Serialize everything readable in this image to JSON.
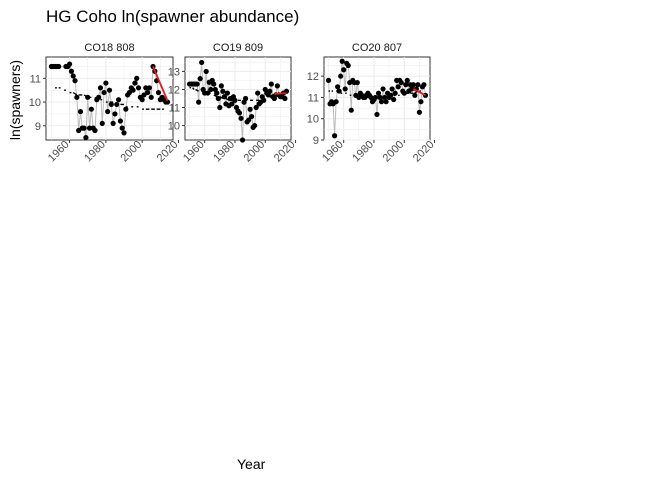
{
  "title": "HG Coho ln(spawner abundance)",
  "xlabel": "Year",
  "ylabel": "ln(spawners)",
  "colors": {
    "point": "#000000",
    "obs_line": "#bdbdbd",
    "fit_line": "#000000",
    "recent_line": "#e41a1c",
    "panel_bg": "#ffffff",
    "grid": "#ebebeb",
    "strip_bg": "#ffffff"
  },
  "chart_data": [
    {
      "type": "scatter",
      "panel": "CO18 808",
      "xlim": [
        1947,
        2017
      ],
      "ylim": [
        8.4,
        11.9
      ],
      "xticks": [
        1960,
        1980,
        2000,
        2020
      ],
      "yticks": [
        9,
        10,
        11
      ],
      "grid": true,
      "x": [
        1950,
        1951,
        1952,
        1953,
        1954,
        1958,
        1959,
        1960,
        1961,
        1962,
        1963,
        1964,
        1965,
        1966,
        1967,
        1968,
        1969,
        1970,
        1971,
        1972,
        1973,
        1974,
        1975,
        1976,
        1977,
        1978,
        1979,
        1980,
        1981,
        1982,
        1983,
        1984,
        1985,
        1986,
        1987,
        1988,
        1989,
        1990,
        1991,
        1992,
        1993,
        1994,
        1995,
        1996,
        1997,
        1998,
        1999,
        2000,
        2001,
        2002,
        2003,
        2004,
        2005,
        2006,
        2007,
        2008,
        2009,
        2010,
        2011,
        2012,
        2013,
        2014
      ],
      "y": [
        11.5,
        11.5,
        11.5,
        11.5,
        11.5,
        11.5,
        11.5,
        11.6,
        11.3,
        11.1,
        10.9,
        10.2,
        8.8,
        9.6,
        8.9,
        8.9,
        8.5,
        10.2,
        8.9,
        9.7,
        8.9,
        8.8,
        10.1,
        10.2,
        10.6,
        9.1,
        10.4,
        10.8,
        9.6,
        10.5,
        9.9,
        9.1,
        9.5,
        9.9,
        10.1,
        9.2,
        8.9,
        8.7,
        9.7,
        10.3,
        10.4,
        10.6,
        10.5,
        10.8,
        11.0,
        10.6,
        10.2,
        10.1,
        10.3,
        10.6,
        10.4,
        10.6,
        10.2,
        11.5,
        11.3,
        10.9,
        10.4,
        10.1,
        10.2,
        10.1,
        10.0,
        10.0
      ],
      "fit_x": [
        1952,
        1953,
        1954,
        1955,
        1957,
        1958,
        1960,
        1961,
        1962,
        1964,
        1965,
        1967,
        1968,
        1970,
        1971,
        1972,
        1974,
        1975,
        1977,
        1978,
        1980,
        1981,
        1982,
        1984,
        1985,
        1987,
        1988,
        1990,
        1991,
        1992,
        1994,
        1995,
        1997,
        1998,
        2000,
        2001,
        2002,
        2004,
        2005,
        2007,
        2008,
        2010,
        2011,
        2012
      ],
      "fit_y": [
        10.6,
        10.6,
        10.6,
        10.6,
        10.5,
        10.5,
        10.4,
        10.4,
        10.4,
        10.3,
        10.3,
        10.3,
        10.3,
        10.2,
        10.2,
        10.2,
        10.2,
        10.1,
        10.1,
        10.1,
        10.0,
        10.0,
        10.0,
        10.0,
        9.9,
        9.9,
        9.9,
        9.9,
        9.8,
        9.8,
        9.8,
        9.8,
        9.8,
        9.8,
        9.7,
        9.7,
        9.7,
        9.7,
        9.7,
        9.7,
        9.7,
        9.7,
        9.7,
        9.7
      ],
      "recent_x": [
        2006,
        2014
      ],
      "recent_y": [
        11.5,
        10.05
      ]
    },
    {
      "type": "scatter",
      "panel": "CO19 809",
      "xlim": [
        1947,
        2017
      ],
      "ylim": [
        9.2,
        13.8
      ],
      "xticks": [
        1960,
        1980,
        2000,
        2020
      ],
      "yticks": [
        10,
        11,
        12,
        13
      ],
      "grid": true,
      "x": [
        1950,
        1951,
        1952,
        1953,
        1954,
        1955,
        1956,
        1957,
        1958,
        1959,
        1960,
        1961,
        1962,
        1963,
        1964,
        1965,
        1966,
        1967,
        1968,
        1969,
        1970,
        1971,
        1972,
        1973,
        1974,
        1975,
        1976,
        1977,
        1978,
        1979,
        1980,
        1981,
        1982,
        1983,
        1984,
        1985,
        1986,
        1987,
        1988,
        1989,
        1990,
        1991,
        1992,
        1993,
        1994,
        1995,
        1996,
        1997,
        1998,
        1999,
        2000,
        2001,
        2002,
        2003,
        2004,
        2005,
        2006,
        2007,
        2008,
        2009,
        2010,
        2011,
        2012,
        2013,
        2014
      ],
      "y": [
        12.3,
        12.3,
        12.3,
        12.3,
        12.3,
        12.3,
        11.3,
        12.6,
        13.5,
        12.0,
        11.8,
        13.0,
        11.8,
        12.4,
        12.0,
        12.5,
        12.3,
        12.0,
        11.8,
        11.5,
        11.0,
        12.2,
        11.9,
        11.6,
        11.2,
        11.8,
        11.1,
        11.5,
        11.2,
        11.6,
        11.4,
        11.0,
        10.8,
        10.7,
        10.4,
        9.2,
        11.3,
        11.5,
        10.2,
        10.3,
        10.9,
        10.5,
        9.9,
        10.0,
        11.0,
        11.8,
        11.2,
        11.3,
        11.6,
        11.4,
        12.0,
        11.8,
        11.7,
        11.9,
        12.3,
        11.6,
        11.5,
        11.7,
        12.2,
        11.7,
        11.6,
        11.6,
        11.8,
        11.5,
        11.9
      ],
      "fit_x": [
        1950,
        1951,
        1952,
        1953,
        1954,
        1956,
        1958,
        1960,
        1962,
        1964,
        1966,
        1968,
        1970,
        1972,
        1974,
        1976,
        1978,
        1980,
        1982,
        1984,
        1986,
        1988,
        1990,
        1992,
        1994,
        1996,
        1998,
        2000,
        2002,
        2004,
        2006,
        2008,
        2010,
        2012
      ],
      "fit_y": [
        12.1,
        12.1,
        12.1,
        12.0,
        12.0,
        11.9,
        11.9,
        11.8,
        11.8,
        11.8,
        11.7,
        11.6,
        11.6,
        11.5,
        11.5,
        11.4,
        11.4,
        11.4,
        11.4,
        11.4,
        11.4,
        11.4,
        11.4,
        11.4,
        11.4,
        11.4,
        11.5,
        11.5,
        11.6,
        11.6,
        11.7,
        11.7,
        11.8,
        11.8
      ],
      "recent_x": [
        2006,
        2014
      ],
      "recent_y": [
        11.75,
        11.8
      ]
    },
    {
      "type": "scatter",
      "panel": "CO20 807",
      "xlim": [
        1947,
        2017
      ],
      "ylim": [
        9.0,
        12.9
      ],
      "xticks": [
        1960,
        1980,
        2000,
        2020
      ],
      "yticks": [
        9,
        10,
        11,
        12
      ],
      "grid": true,
      "x": [
        1950,
        1951,
        1952,
        1953,
        1954,
        1955,
        1956,
        1957,
        1958,
        1959,
        1960,
        1961,
        1962,
        1963,
        1964,
        1965,
        1966,
        1967,
        1968,
        1969,
        1970,
        1971,
        1972,
        1973,
        1974,
        1975,
        1976,
        1977,
        1978,
        1979,
        1980,
        1981,
        1982,
        1983,
        1984,
        1985,
        1986,
        1987,
        1988,
        1989,
        1990,
        1991,
        1992,
        1993,
        1994,
        1995,
        1996,
        1997,
        1998,
        1999,
        2000,
        2001,
        2002,
        2003,
        2004,
        2005,
        2006,
        2007,
        2008,
        2009,
        2010,
        2011,
        2012,
        2013,
        2014
      ],
      "y": [
        11.8,
        10.7,
        10.8,
        10.7,
        9.2,
        10.8,
        11.5,
        11.3,
        12.0,
        12.7,
        12.3,
        11.4,
        12.6,
        12.5,
        11.7,
        10.4,
        11.8,
        11.7,
        11.1,
        11.7,
        11.0,
        11.2,
        11.1,
        11.0,
        11.0,
        11.1,
        11.2,
        11.1,
        11.0,
        10.8,
        10.9,
        11.0,
        10.2,
        11.2,
        11.0,
        10.8,
        11.4,
        11.0,
        10.8,
        11.2,
        11.0,
        11.1,
        11.4,
        10.9,
        11.2,
        11.8,
        11.5,
        11.8,
        11.7,
        11.3,
        11.2,
        11.6,
        11.8,
        11.3,
        11.6,
        11.4,
        11.6,
        11.1,
        11.4,
        11.6,
        10.3,
        10.8,
        11.5,
        11.6,
        11.1
      ],
      "fit_x": [
        1950,
        1951,
        1952,
        1953,
        1955,
        1956,
        1958,
        1959,
        1961,
        1962,
        1964,
        1965,
        1967,
        1968,
        1970,
        1971,
        1972,
        1974,
        1975,
        1977,
        1978,
        1980,
        1981,
        1982,
        1984,
        1985,
        1987,
        1988,
        1990,
        1991,
        1993,
        1994,
        1996,
        1997,
        1998,
        2000,
        2001,
        2003,
        2004,
        2006,
        2007,
        2009,
        2010,
        2011,
        2012
      ],
      "fit_y": [
        11.3,
        11.3,
        11.3,
        11.3,
        11.3,
        11.3,
        11.2,
        11.2,
        11.2,
        11.2,
        11.1,
        11.1,
        11.1,
        11.1,
        11.0,
        11.0,
        11.0,
        11.0,
        11.0,
        11.0,
        11.0,
        11.0,
        11.0,
        11.0,
        11.0,
        11.0,
        11.0,
        11.0,
        11.0,
        11.1,
        11.1,
        11.1,
        11.1,
        11.1,
        11.2,
        11.2,
        11.2,
        11.2,
        11.2,
        11.2,
        11.2,
        11.3,
        11.3,
        11.3,
        11.3
      ],
      "recent_x": [
        2006,
        2014
      ],
      "recent_y": [
        11.4,
        11.1
      ]
    }
  ]
}
